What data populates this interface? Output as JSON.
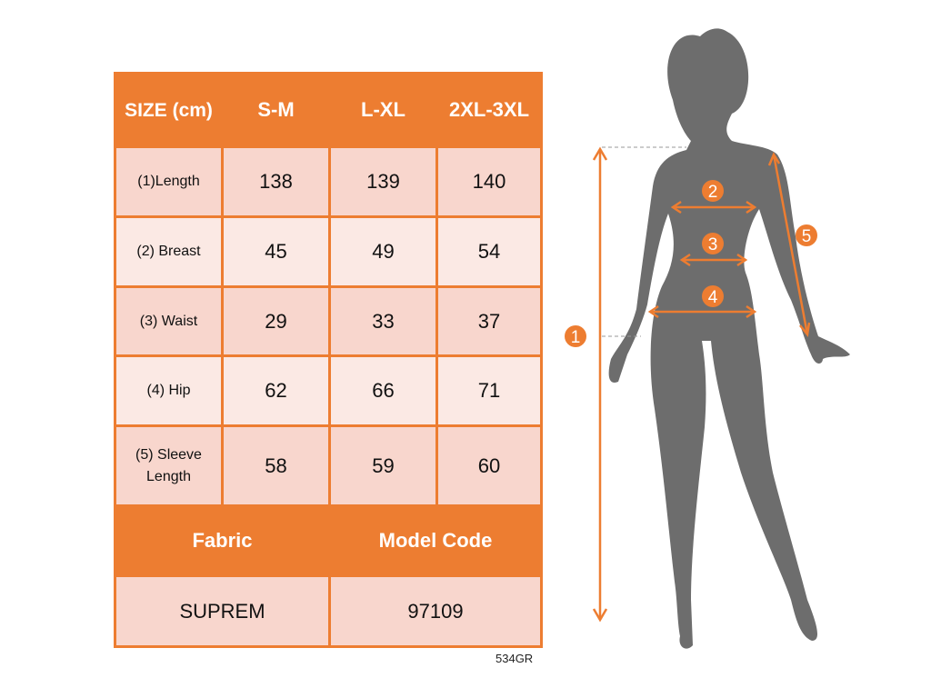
{
  "table": {
    "header": [
      "SIZE (cm)",
      "S-M",
      "L-XL",
      "2XL-3XL"
    ],
    "rows": [
      {
        "label": "(1)Length",
        "values": [
          "138",
          "139",
          "140"
        ]
      },
      {
        "label": "(2) Breast",
        "values": [
          "45",
          "49",
          "54"
        ]
      },
      {
        "label": "(3) Waist",
        "values": [
          "29",
          "33",
          "37"
        ]
      },
      {
        "label": "(4) Hip",
        "values": [
          "62",
          "66",
          "71"
        ]
      },
      {
        "label": "(5) Sleeve Length",
        "values": [
          "58",
          "59",
          "60"
        ]
      }
    ],
    "footer_header": [
      "Fabric",
      "Model Code"
    ],
    "footer_values": [
      "SUPREM",
      "97109"
    ]
  },
  "product_code": "534GR",
  "figure": {
    "markers": [
      "1",
      "2",
      "3",
      "4",
      "5"
    ],
    "accent_color": "#ed7d31",
    "silhouette_color": "#6d6d6d"
  }
}
